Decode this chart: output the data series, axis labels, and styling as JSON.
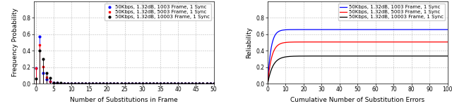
{
  "left": {
    "xlabel": "Number of Substitutions in Frame",
    "ylabel": "Frequency Probability",
    "xlim": [
      -0.5,
      50
    ],
    "ylim": [
      0,
      1.0
    ],
    "yticks": [
      0,
      0.2,
      0.4,
      0.6,
      0.8
    ],
    "xticks": [
      0,
      5,
      10,
      15,
      20,
      25,
      30,
      35,
      40,
      45,
      50
    ],
    "series": [
      {
        "label": "50Kbps, 1.32dB, 1003 Frame, 1 Sync",
        "color": "#0000ff",
        "marker": "o",
        "x": [
          0,
          1,
          2,
          3,
          4,
          5,
          6,
          7,
          8,
          9,
          10,
          11,
          12,
          13,
          14,
          15,
          16,
          17,
          18,
          19,
          20,
          21,
          22,
          23,
          24,
          25,
          26,
          27,
          28,
          29,
          30,
          31,
          32,
          33,
          34,
          35,
          36,
          37,
          38,
          39,
          40,
          41,
          42,
          43,
          44,
          45,
          46,
          47,
          48,
          49,
          50
        ],
        "y": [
          0.19,
          0.57,
          0.13,
          0.055,
          0.028,
          0.012,
          0.007,
          0.004,
          0.003,
          0.002,
          0.002,
          0.002,
          0.001,
          0.001,
          0.001,
          0.001,
          0.001,
          0.001,
          0.001,
          0.001,
          0.001,
          0.001,
          0.001,
          0.001,
          0.001,
          0.001,
          0.001,
          0.001,
          0.001,
          0.001,
          0.001,
          0.001,
          0.001,
          0.001,
          0.001,
          0.001,
          0.001,
          0.001,
          0.001,
          0.001,
          0.001,
          0.001,
          0.001,
          0.001,
          0.001,
          0.001,
          0.001,
          0.001,
          0.001,
          0.001,
          0.001
        ]
      },
      {
        "label": "50Kbps, 1.32dB, 5003 Frame, 1 Sync",
        "color": "#ff0000",
        "marker": "s",
        "x": [
          0,
          1,
          2,
          3,
          4,
          5,
          6,
          7,
          8,
          9,
          10,
          11,
          12,
          13,
          14,
          15,
          16,
          17,
          18,
          19,
          20,
          21,
          22,
          23,
          24,
          25,
          26,
          27,
          28,
          29,
          30,
          31,
          32,
          33,
          34,
          35,
          36,
          37,
          38,
          39,
          40,
          41,
          42,
          43,
          44,
          45,
          46,
          47,
          48,
          49,
          50
        ],
        "y": [
          0.19,
          0.47,
          0.21,
          0.075,
          0.032,
          0.014,
          0.007,
          0.004,
          0.003,
          0.002,
          0.002,
          0.001,
          0.001,
          0.001,
          0.001,
          0.001,
          0.001,
          0.001,
          0.001,
          0.001,
          0.001,
          0.001,
          0.001,
          0.001,
          0.001,
          0.001,
          0.001,
          0.001,
          0.001,
          0.001,
          0.001,
          0.001,
          0.001,
          0.001,
          0.001,
          0.001,
          0.001,
          0.001,
          0.001,
          0.001,
          0.001,
          0.001,
          0.001,
          0.001,
          0.001,
          0.001,
          0.001,
          0.001,
          0.001,
          0.001,
          0.001
        ]
      },
      {
        "label": "50Kbps, 1.32dB, 10003 Frame, 1 Sync",
        "color": "#000000",
        "marker": "o",
        "x": [
          0,
          1,
          2,
          3,
          4,
          5,
          6,
          7,
          8,
          9,
          10,
          11,
          12,
          13,
          14,
          15,
          16,
          17,
          18,
          19,
          20,
          21,
          22,
          23,
          24,
          25,
          26,
          27,
          28,
          29,
          30,
          31,
          32,
          33,
          34,
          35,
          36,
          37,
          38,
          39,
          40,
          41,
          42,
          43,
          44,
          45,
          46,
          47,
          48,
          49,
          50
        ],
        "y": [
          0.06,
          0.4,
          0.3,
          0.13,
          0.07,
          0.014,
          0.012,
          0.007,
          0.004,
          0.003,
          0.002,
          0.002,
          0.002,
          0.001,
          0.001,
          0.001,
          0.001,
          0.001,
          0.001,
          0.001,
          0.001,
          0.001,
          0.001,
          0.001,
          0.001,
          0.001,
          0.001,
          0.001,
          0.001,
          0.001,
          0.001,
          0.001,
          0.001,
          0.001,
          0.001,
          0.001,
          0.001,
          0.001,
          0.001,
          0.001,
          0.001,
          0.001,
          0.001,
          0.001,
          0.001,
          0.001,
          0.001,
          0.001,
          0.001,
          0.001,
          0.001
        ]
      }
    ]
  },
  "right": {
    "xlabel": "Cumulative Number of Substitution Errors",
    "ylabel": "Reliability",
    "xlim": [
      0,
      100
    ],
    "ylim": [
      0,
      1.0
    ],
    "yticks": [
      0,
      0.2,
      0.4,
      0.6,
      0.8
    ],
    "xticks": [
      0,
      10,
      20,
      30,
      40,
      50,
      60,
      70,
      80,
      90,
      100
    ],
    "series": [
      {
        "label": "50Kbps, 1.32dB, 1003 Frame, 1 Sync",
        "color": "#0000ff",
        "plateau": 0.655,
        "rate": 0.55
      },
      {
        "label": "50Kbps, 1.32dB, 5003 Frame, 1 Sync",
        "color": "#ff0000",
        "plateau": 0.505,
        "rate": 0.45
      },
      {
        "label": "50Kbps, 1.32dB, 10003 Frame, 1 Sync",
        "color": "#000000",
        "plateau": 0.335,
        "rate": 0.35
      }
    ]
  },
  "legend_fontsize": 5.0,
  "tick_fontsize": 5.5,
  "label_fontsize": 6.5,
  "bg_color": "#ffffff",
  "grid_color": "#aaaaaa"
}
